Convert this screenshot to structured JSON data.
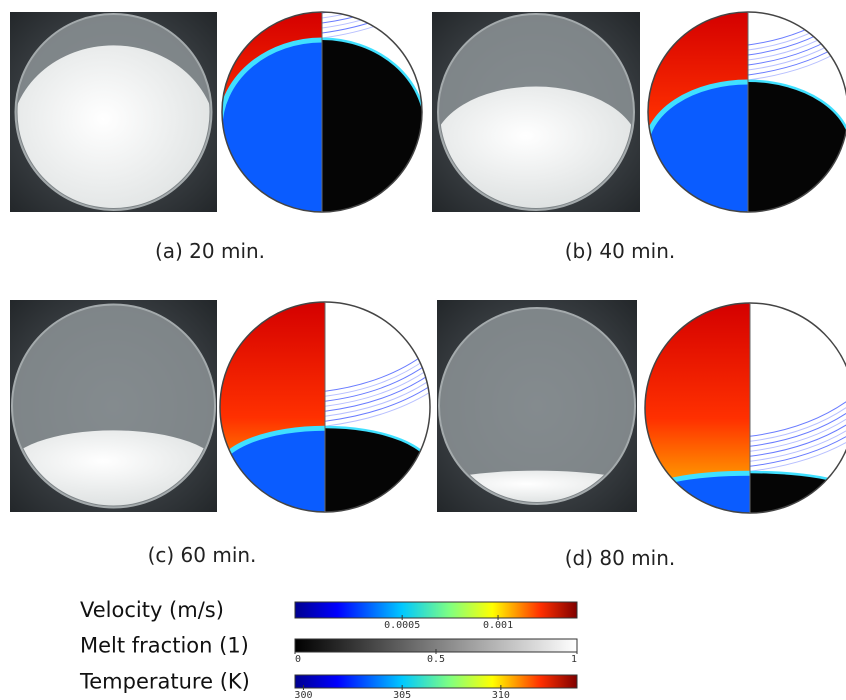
{
  "panels": [
    {
      "caption": "(a) 20 min."
    },
    {
      "caption": "(b) 40 min."
    },
    {
      "caption": "(c) 60 min."
    },
    {
      "caption": "(d) 80 min."
    }
  ],
  "colorbars": [
    {
      "label": "Velocity (m/s)",
      "ticks": [
        "0.0005",
        "0.001"
      ]
    },
    {
      "label": "Melt fraction (1)",
      "ticks": [
        "0",
        "0.5",
        "1"
      ]
    },
    {
      "label": "Temperature (K)",
      "ticks": [
        "300",
        "305",
        "310"
      ]
    }
  ]
}
